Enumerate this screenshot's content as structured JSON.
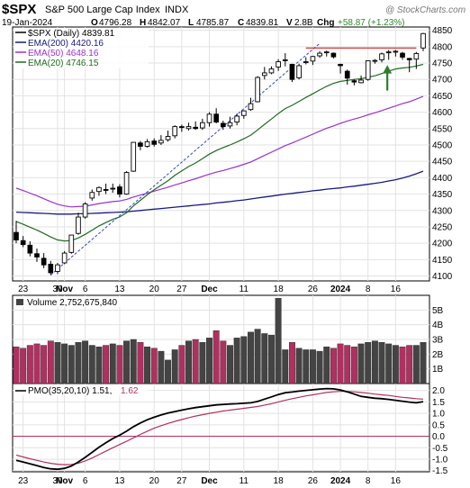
{
  "header": {
    "symbol": "$SPX",
    "name": "S&P 500 Large Cap Index",
    "exchange": "INDX",
    "watermark": "@ StockCharts.com",
    "date": "19-Jan-2024",
    "open_label": "O",
    "open": "4796.28",
    "high_label": "H",
    "high": "4842.07",
    "low_label": "L",
    "low": "4785.87",
    "close_label": "C",
    "close": "4839.81",
    "volume_label": "V",
    "volume": "2.8B",
    "chg_label": "Chg",
    "chg": "+58.87 (+1.23%)"
  },
  "chart_data": [
    {
      "type": "candlestick",
      "legend": [
        {
          "text": "$SPX (Daily) 4839.81",
          "color": "#000000"
        },
        {
          "text": "EMA(200) 4420.16",
          "color": "#1a1a80"
        },
        {
          "text": "EMA(50) 4648.16",
          "color": "#9932cc"
        },
        {
          "text": "EMA(20) 4746.15",
          "color": "#1f6b1f"
        }
      ],
      "ylim": [
        4085,
        4860
      ],
      "y_ticks": [
        4100,
        4150,
        4200,
        4250,
        4300,
        4350,
        4400,
        4450,
        4500,
        4550,
        4600,
        4650,
        4700,
        4750,
        4800,
        4850
      ],
      "x_labels": [
        {
          "i": 1,
          "text": "23",
          "bold": false
        },
        {
          "i": 6,
          "text": "30",
          "bold": false
        },
        {
          "i": 7,
          "text": "Nov",
          "bold": true
        },
        {
          "i": 10,
          "text": "6",
          "bold": false
        },
        {
          "i": 15,
          "text": "13",
          "bold": false
        },
        {
          "i": 20,
          "text": "20",
          "bold": false
        },
        {
          "i": 24,
          "text": "27",
          "bold": false
        },
        {
          "i": 28,
          "text": "Dec",
          "bold": true
        },
        {
          "i": 33,
          "text": "11",
          "bold": false
        },
        {
          "i": 38,
          "text": "18",
          "bold": false
        },
        {
          "i": 43,
          "text": "26",
          "bold": false
        },
        {
          "i": 47,
          "text": "2024",
          "bold": true
        },
        {
          "i": 51,
          "text": "8",
          "bold": false
        },
        {
          "i": 55,
          "text": "16",
          "bold": false
        }
      ],
      "resistance_level": 4796,
      "ohlc": [
        [
          4233,
          4268,
          4200,
          4210
        ],
        [
          4208,
          4222,
          4188,
          4196
        ],
        [
          4194,
          4206,
          4160,
          4170
        ],
        [
          4168,
          4184,
          4143,
          4158
        ],
        [
          4154,
          4170,
          4124,
          4134
        ],
        [
          4136,
          4146,
          4103,
          4110
        ],
        [
          4114,
          4140,
          4106,
          4134
        ],
        [
          4140,
          4176,
          4136,
          4170
        ],
        [
          4172,
          4225,
          4168,
          4225
        ],
        [
          4230,
          4293,
          4226,
          4280
        ],
        [
          4280,
          4325,
          4275,
          4320
        ],
        [
          4338,
          4364,
          4330,
          4355
        ],
        [
          4358,
          4373,
          4345,
          4370
        ],
        [
          4364,
          4382,
          4350,
          4363
        ],
        [
          4366,
          4382,
          4354,
          4368
        ],
        [
          4372,
          4380,
          4340,
          4350
        ],
        [
          4350,
          4420,
          4348,
          4416
        ],
        [
          4420,
          4508,
          4418,
          4508
        ],
        [
          4506,
          4512,
          4484,
          4496
        ],
        [
          4496,
          4518,
          4492,
          4510
        ],
        [
          4512,
          4520,
          4495,
          4502
        ],
        [
          4506,
          4530,
          4500,
          4514
        ],
        [
          4516,
          4544,
          4510,
          4526
        ],
        [
          4528,
          4560,
          4520,
          4556
        ],
        [
          4556,
          4562,
          4540,
          4554
        ],
        [
          4550,
          4568,
          4544,
          4556
        ],
        [
          4554,
          4572,
          4546,
          4550
        ],
        [
          4552,
          4580,
          4546,
          4568
        ],
        [
          4568,
          4600,
          4556,
          4594
        ],
        [
          4594,
          4612,
          4566,
          4570
        ],
        [
          4566,
          4574,
          4546,
          4556
        ],
        [
          4558,
          4586,
          4550,
          4568
        ],
        [
          4570,
          4596,
          4560,
          4588
        ],
        [
          4590,
          4606,
          4580,
          4604
        ],
        [
          4608,
          4644,
          4604,
          4626
        ],
        [
          4632,
          4710,
          4630,
          4706
        ],
        [
          4712,
          4738,
          4700,
          4720
        ],
        [
          4720,
          4740,
          4716,
          4732
        ],
        [
          4738,
          4762,
          4726,
          4754
        ],
        [
          4758,
          4780,
          4740,
          4760
        ],
        [
          4746,
          4748,
          4692,
          4700
        ],
        [
          4705,
          4748,
          4700,
          4742
        ],
        [
          4752,
          4768,
          4746,
          4754
        ],
        [
          4756,
          4772,
          4744,
          4770
        ],
        [
          4772,
          4786,
          4766,
          4780
        ],
        [
          4782,
          4788,
          4770,
          4784
        ],
        [
          4780,
          4782,
          4764,
          4769
        ],
        [
          4746,
          4748,
          4718,
          4742
        ],
        [
          4725,
          4730,
          4684,
          4704
        ],
        [
          4696,
          4700,
          4682,
          4692
        ],
        [
          4690,
          4712,
          4688,
          4698
        ],
        [
          4700,
          4758,
          4696,
          4757
        ],
        [
          4758,
          4762,
          4748,
          4758
        ],
        [
          4760,
          4782,
          4752,
          4778
        ],
        [
          4782,
          4790,
          4760,
          4784
        ],
        [
          4784,
          4790,
          4770,
          4786
        ],
        [
          4780,
          4784,
          4760,
          4768
        ],
        [
          4764,
          4766,
          4722,
          4760
        ],
        [
          4762,
          4784,
          4732,
          4779
        ],
        [
          4796,
          4842,
          4786,
          4840
        ]
      ],
      "ema20": [
        4266,
        4258,
        4249,
        4240,
        4230,
        4219,
        4210,
        4207,
        4208,
        4216,
        4227,
        4240,
        4253,
        4263,
        4273,
        4280,
        4293,
        4314,
        4331,
        4348,
        4363,
        4377,
        4391,
        4407,
        4421,
        4434,
        4445,
        4458,
        4472,
        4483,
        4492,
        4500,
        4509,
        4519,
        4530,
        4546,
        4563,
        4579,
        4596,
        4611,
        4621,
        4633,
        4645,
        4656,
        4668,
        4679,
        4688,
        4694,
        4697,
        4700,
        4702,
        4707,
        4711,
        4718,
        4725,
        4732,
        4735,
        4737,
        4741,
        4746
      ],
      "ema50": [
        4368,
        4361,
        4353,
        4345,
        4336,
        4327,
        4319,
        4314,
        4311,
        4312,
        4313,
        4317,
        4321,
        4324,
        4327,
        4329,
        4334,
        4341,
        4347,
        4353,
        4359,
        4365,
        4371,
        4378,
        4384,
        4391,
        4397,
        4404,
        4411,
        4417,
        4422,
        4428,
        4434,
        4441,
        4448,
        4458,
        4468,
        4478,
        4488,
        4498,
        4506,
        4515,
        4524,
        4533,
        4542,
        4551,
        4558,
        4566,
        4573,
        4579,
        4585,
        4592,
        4598,
        4605,
        4612,
        4619,
        4626,
        4632,
        4640,
        4648
      ],
      "ema200": [
        4295,
        4294,
        4293,
        4292,
        4291,
        4290,
        4289,
        4289,
        4289,
        4290,
        4290,
        4291,
        4292,
        4293,
        4294,
        4295,
        4296,
        4298,
        4300,
        4302,
        4304,
        4306,
        4308,
        4310,
        4312,
        4314,
        4316,
        4318,
        4320,
        4323,
        4325,
        4327,
        4330,
        4332,
        4335,
        4338,
        4341,
        4344,
        4347,
        4350,
        4352,
        4355,
        4357,
        4360,
        4362,
        4365,
        4367,
        4369,
        4372,
        4374,
        4377,
        4380,
        4383,
        4386,
        4390,
        4394,
        4399,
        4405,
        4412,
        4420
      ]
    },
    {
      "type": "bar",
      "title": "Volume 2,752,675,840",
      "ylim": [
        0,
        6
      ],
      "y_ticks": [
        {
          "v": 1,
          "t": "1B"
        },
        {
          "v": 2,
          "t": "2B"
        },
        {
          "v": 3,
          "t": "3B"
        },
        {
          "v": 4,
          "t": "4B"
        },
        {
          "v": 5,
          "t": "5B"
        }
      ],
      "values": [
        2.5,
        2.4,
        2.6,
        2.7,
        2.6,
        2.9,
        2.8,
        2.7,
        2.6,
        2.8,
        2.9,
        2.6,
        2.5,
        2.6,
        2.7,
        2.6,
        2.9,
        3.0,
        2.8,
        2.5,
        2.4,
        2.2,
        1.6,
        2.3,
        2.6,
        2.9,
        3.0,
        2.8,
        3.1,
        3.6,
        2.9,
        2.6,
        3.1,
        3.2,
        3.5,
        3.7,
        3.4,
        3.3,
        5.8,
        2.3,
        2.8,
        2.4,
        2.3,
        2.3,
        2.2,
        2.5,
        2.4,
        2.7,
        2.6,
        2.5,
        2.7,
        2.8,
        2.9,
        2.8,
        2.7,
        2.6,
        2.5,
        2.6,
        2.6,
        2.8
      ],
      "down_color": "#b03060",
      "up_color": "#444444"
    },
    {
      "type": "line",
      "title": "PMO(35,20,10) 1.51, 1.62",
      "title_main": "PMO(35,20,10) 1.51,",
      "title_signal": "1.62",
      "ylim": [
        -1.55,
        2.3
      ],
      "y_ticks": [
        {
          "v": -1.5,
          "t": "-1.5"
        },
        {
          "v": -1.0,
          "t": "-1.0"
        },
        {
          "v": -0.5,
          "t": "-0.5"
        },
        {
          "v": 0.0,
          "t": "0.0"
        },
        {
          "v": 0.5,
          "t": "0.5"
        },
        {
          "v": 1.0,
          "t": "1.0"
        },
        {
          "v": 1.5,
          "t": "1.5"
        },
        {
          "v": 2.0,
          "t": "2.0"
        }
      ],
      "series": [
        {
          "name": "PMO",
          "color": "#000000",
          "values": [
            -1.05,
            -1.12,
            -1.2,
            -1.28,
            -1.36,
            -1.42,
            -1.44,
            -1.4,
            -1.3,
            -1.12,
            -0.92,
            -0.7,
            -0.48,
            -0.28,
            -0.1,
            0.05,
            0.22,
            0.42,
            0.58,
            0.72,
            0.83,
            0.93,
            1.01,
            1.08,
            1.14,
            1.2,
            1.25,
            1.29,
            1.33,
            1.37,
            1.39,
            1.41,
            1.42,
            1.44,
            1.46,
            1.52,
            1.62,
            1.72,
            1.82,
            1.9,
            1.93,
            1.97,
            2.0,
            2.03,
            2.06,
            2.08,
            2.07,
            2.02,
            1.94,
            1.84,
            1.74,
            1.7,
            1.66,
            1.64,
            1.61,
            1.57,
            1.53,
            1.49,
            1.46,
            1.51
          ]
        },
        {
          "name": "Signal",
          "color": "#b03060",
          "values": [
            -0.82,
            -0.9,
            -0.98,
            -1.05,
            -1.12,
            -1.18,
            -1.22,
            -1.24,
            -1.23,
            -1.18,
            -1.08,
            -0.95,
            -0.8,
            -0.65,
            -0.5,
            -0.36,
            -0.22,
            -0.07,
            0.08,
            0.22,
            0.35,
            0.46,
            0.56,
            0.65,
            0.73,
            0.81,
            0.88,
            0.94,
            1.0,
            1.05,
            1.1,
            1.14,
            1.18,
            1.22,
            1.26,
            1.3,
            1.36,
            1.42,
            1.5,
            1.57,
            1.64,
            1.7,
            1.76,
            1.81,
            1.86,
            1.91,
            1.94,
            1.96,
            1.96,
            1.94,
            1.91,
            1.88,
            1.84,
            1.81,
            1.78,
            1.74,
            1.7,
            1.67,
            1.64,
            1.62
          ]
        }
      ]
    }
  ]
}
